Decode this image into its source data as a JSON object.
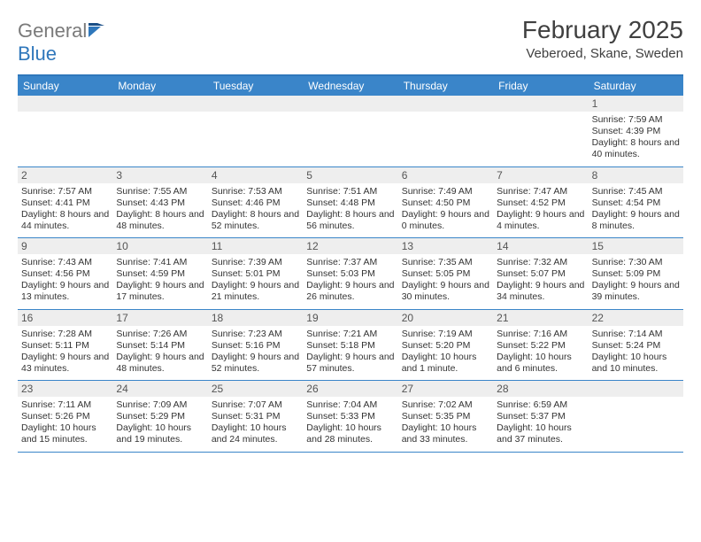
{
  "logo": {
    "word1": "General",
    "word2": "Blue"
  },
  "title": "February 2025",
  "location": "Veberoed, Skane, Sweden",
  "colors": {
    "header_bar": "#3a85c9",
    "rule": "#2f77bb",
    "daynum_bg": "#eeeeee",
    "text": "#333333",
    "logo_gray": "#7a7a7a",
    "logo_blue": "#2f77bb",
    "white": "#ffffff"
  },
  "day_names": [
    "Sunday",
    "Monday",
    "Tuesday",
    "Wednesday",
    "Thursday",
    "Friday",
    "Saturday"
  ],
  "weeks": [
    [
      {
        "blank": true
      },
      {
        "blank": true
      },
      {
        "blank": true
      },
      {
        "blank": true
      },
      {
        "blank": true
      },
      {
        "blank": true
      },
      {
        "n": "1",
        "sunrise": "Sunrise: 7:59 AM",
        "sunset": "Sunset: 4:39 PM",
        "daylight": "Daylight: 8 hours and 40 minutes."
      }
    ],
    [
      {
        "n": "2",
        "sunrise": "Sunrise: 7:57 AM",
        "sunset": "Sunset: 4:41 PM",
        "daylight": "Daylight: 8 hours and 44 minutes."
      },
      {
        "n": "3",
        "sunrise": "Sunrise: 7:55 AM",
        "sunset": "Sunset: 4:43 PM",
        "daylight": "Daylight: 8 hours and 48 minutes."
      },
      {
        "n": "4",
        "sunrise": "Sunrise: 7:53 AM",
        "sunset": "Sunset: 4:46 PM",
        "daylight": "Daylight: 8 hours and 52 minutes."
      },
      {
        "n": "5",
        "sunrise": "Sunrise: 7:51 AM",
        "sunset": "Sunset: 4:48 PM",
        "daylight": "Daylight: 8 hours and 56 minutes."
      },
      {
        "n": "6",
        "sunrise": "Sunrise: 7:49 AM",
        "sunset": "Sunset: 4:50 PM",
        "daylight": "Daylight: 9 hours and 0 minutes."
      },
      {
        "n": "7",
        "sunrise": "Sunrise: 7:47 AM",
        "sunset": "Sunset: 4:52 PM",
        "daylight": "Daylight: 9 hours and 4 minutes."
      },
      {
        "n": "8",
        "sunrise": "Sunrise: 7:45 AM",
        "sunset": "Sunset: 4:54 PM",
        "daylight": "Daylight: 9 hours and 8 minutes."
      }
    ],
    [
      {
        "n": "9",
        "sunrise": "Sunrise: 7:43 AM",
        "sunset": "Sunset: 4:56 PM",
        "daylight": "Daylight: 9 hours and 13 minutes."
      },
      {
        "n": "10",
        "sunrise": "Sunrise: 7:41 AM",
        "sunset": "Sunset: 4:59 PM",
        "daylight": "Daylight: 9 hours and 17 minutes."
      },
      {
        "n": "11",
        "sunrise": "Sunrise: 7:39 AM",
        "sunset": "Sunset: 5:01 PM",
        "daylight": "Daylight: 9 hours and 21 minutes."
      },
      {
        "n": "12",
        "sunrise": "Sunrise: 7:37 AM",
        "sunset": "Sunset: 5:03 PM",
        "daylight": "Daylight: 9 hours and 26 minutes."
      },
      {
        "n": "13",
        "sunrise": "Sunrise: 7:35 AM",
        "sunset": "Sunset: 5:05 PM",
        "daylight": "Daylight: 9 hours and 30 minutes."
      },
      {
        "n": "14",
        "sunrise": "Sunrise: 7:32 AM",
        "sunset": "Sunset: 5:07 PM",
        "daylight": "Daylight: 9 hours and 34 minutes."
      },
      {
        "n": "15",
        "sunrise": "Sunrise: 7:30 AM",
        "sunset": "Sunset: 5:09 PM",
        "daylight": "Daylight: 9 hours and 39 minutes."
      }
    ],
    [
      {
        "n": "16",
        "sunrise": "Sunrise: 7:28 AM",
        "sunset": "Sunset: 5:11 PM",
        "daylight": "Daylight: 9 hours and 43 minutes."
      },
      {
        "n": "17",
        "sunrise": "Sunrise: 7:26 AM",
        "sunset": "Sunset: 5:14 PM",
        "daylight": "Daylight: 9 hours and 48 minutes."
      },
      {
        "n": "18",
        "sunrise": "Sunrise: 7:23 AM",
        "sunset": "Sunset: 5:16 PM",
        "daylight": "Daylight: 9 hours and 52 minutes."
      },
      {
        "n": "19",
        "sunrise": "Sunrise: 7:21 AM",
        "sunset": "Sunset: 5:18 PM",
        "daylight": "Daylight: 9 hours and 57 minutes."
      },
      {
        "n": "20",
        "sunrise": "Sunrise: 7:19 AM",
        "sunset": "Sunset: 5:20 PM",
        "daylight": "Daylight: 10 hours and 1 minute."
      },
      {
        "n": "21",
        "sunrise": "Sunrise: 7:16 AM",
        "sunset": "Sunset: 5:22 PM",
        "daylight": "Daylight: 10 hours and 6 minutes."
      },
      {
        "n": "22",
        "sunrise": "Sunrise: 7:14 AM",
        "sunset": "Sunset: 5:24 PM",
        "daylight": "Daylight: 10 hours and 10 minutes."
      }
    ],
    [
      {
        "n": "23",
        "sunrise": "Sunrise: 7:11 AM",
        "sunset": "Sunset: 5:26 PM",
        "daylight": "Daylight: 10 hours and 15 minutes."
      },
      {
        "n": "24",
        "sunrise": "Sunrise: 7:09 AM",
        "sunset": "Sunset: 5:29 PM",
        "daylight": "Daylight: 10 hours and 19 minutes."
      },
      {
        "n": "25",
        "sunrise": "Sunrise: 7:07 AM",
        "sunset": "Sunset: 5:31 PM",
        "daylight": "Daylight: 10 hours and 24 minutes."
      },
      {
        "n": "26",
        "sunrise": "Sunrise: 7:04 AM",
        "sunset": "Sunset: 5:33 PM",
        "daylight": "Daylight: 10 hours and 28 minutes."
      },
      {
        "n": "27",
        "sunrise": "Sunrise: 7:02 AM",
        "sunset": "Sunset: 5:35 PM",
        "daylight": "Daylight: 10 hours and 33 minutes."
      },
      {
        "n": "28",
        "sunrise": "Sunrise: 6:59 AM",
        "sunset": "Sunset: 5:37 PM",
        "daylight": "Daylight: 10 hours and 37 minutes."
      },
      {
        "blank": true
      }
    ]
  ]
}
